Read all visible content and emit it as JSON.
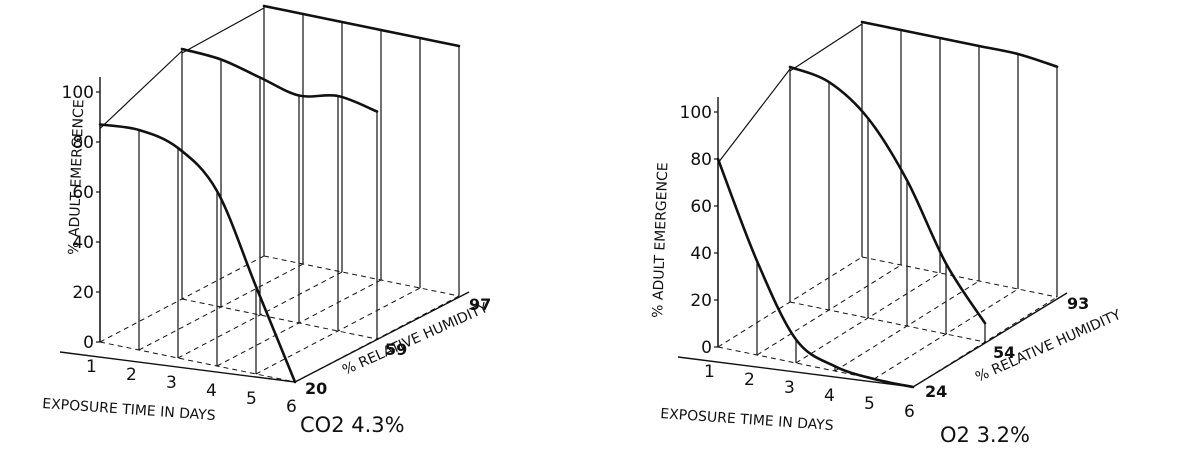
{
  "chart_data": [
    {
      "type": "line",
      "projection": "3d-perspective",
      "title": "CO2 4.3%",
      "xlabel": "EXPOSURE TIME IN DAYS",
      "ylabel": "% ADULT EMERGENCE",
      "zlabel": "% RELATIVE HUMIDITY",
      "x": [
        1,
        2,
        3,
        4,
        5,
        6
      ],
      "x_ticks": [
        "1",
        "2",
        "3",
        "4",
        "5",
        "6"
      ],
      "y_ticks": [
        "0",
        "20",
        "40",
        "60",
        "80",
        "100"
      ],
      "ylim": [
        0,
        100
      ],
      "grid": true,
      "series": [
        {
          "name": "20",
          "values": [
            87,
            88,
            84,
            70,
            35,
            0
          ]
        },
        {
          "name": "59",
          "values": [
            100,
            99,
            95,
            91,
            94,
            91
          ]
        },
        {
          "name": "97",
          "values": [
            100,
            100,
            100,
            100,
            100,
            100
          ]
        }
      ]
    },
    {
      "type": "line",
      "projection": "3d-perspective",
      "title": "O2 3.2%",
      "xlabel": "EXPOSURE TIME IN DAYS",
      "ylabel": "% ADULT EMERGENCE",
      "zlabel": "% RELATIVE HUMIDITY",
      "x": [
        1,
        2,
        3,
        4,
        5,
        6
      ],
      "x_ticks": [
        "1",
        "2",
        "3",
        "4",
        "5",
        "6"
      ],
      "y_ticks": [
        "0",
        "20",
        "40",
        "60",
        "80",
        "100"
      ],
      "ylim": [
        0,
        100
      ],
      "grid": true,
      "series": [
        {
          "name": "24",
          "values": [
            80,
            40,
            10,
            2,
            0,
            0
          ]
        },
        {
          "name": "54",
          "values": [
            100,
            97,
            85,
            62,
            30,
            8
          ]
        },
        {
          "name": "93",
          "values": [
            100,
            100,
            100,
            100,
            100,
            98
          ]
        }
      ]
    }
  ]
}
